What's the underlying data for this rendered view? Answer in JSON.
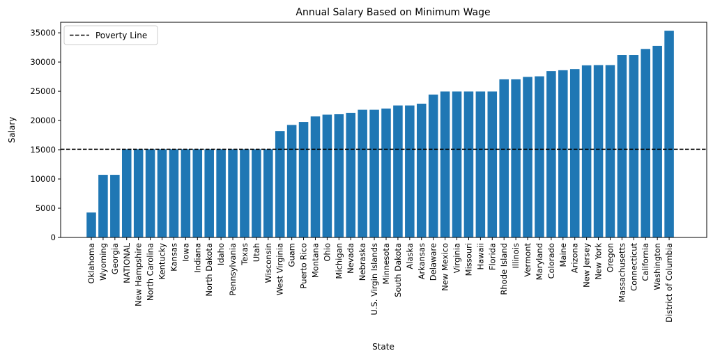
{
  "chart_data": {
    "type": "bar",
    "title": "Annual Salary Based on Minimum Wage",
    "xlabel": "State",
    "ylabel": "Salary",
    "ylim": [
      0,
      36800
    ],
    "yticks": [
      0,
      5000,
      10000,
      15000,
      20000,
      25000,
      30000,
      35000
    ],
    "bar_color": "#1f77b4",
    "grid": false,
    "legend_position": "top-left",
    "reference_line": {
      "name": "Poverty Line",
      "value": 15080,
      "color": "#000000",
      "style": "dashed"
    },
    "categories": [
      "Oklahoma",
      "Wyoming",
      "Georgia",
      "NATIONAL",
      "New Hampshire",
      "North Carolina",
      "Kentucky",
      "Kansas",
      "Iowa",
      "Indiana",
      "North Dakota",
      "Idaho",
      "Pennsylvania",
      "Texas",
      "Utah",
      "Wisconsin",
      "West Virginia",
      "Guam",
      "Puerto Rico",
      "Montana",
      "Ohio",
      "Michigan",
      "Nevada",
      "Nebraska",
      "U.S. Virgin Islands",
      "Minnesota",
      "South Dakota",
      "Alaska",
      "Arkansas",
      "Delaware",
      "New Mexico",
      "Virginia",
      "Missouri",
      "Hawaii",
      "Florida",
      "Rhode Island",
      "Illinois",
      "Vermont",
      "Maryland",
      "Colorado",
      "Maine",
      "Arizona",
      "New Jersey",
      "New York",
      "Oregon",
      "Massachusetts",
      "Connecticut",
      "California",
      "Washington",
      "District of Columbia"
    ],
    "values": [
      4264,
      10712,
      10712,
      15080,
      15080,
      15080,
      15080,
      15080,
      15080,
      15080,
      15080,
      15080,
      15080,
      15080,
      15080,
      15080,
      18200,
      19240,
      19760,
      20696,
      21008,
      21070,
      21320,
      21840,
      21840,
      22050,
      22568,
      22568,
      22880,
      24440,
      24960,
      24960,
      24960,
      24960,
      24960,
      27040,
      27040,
      27456,
      27560,
      28450,
      28600,
      28800,
      29440,
      29480,
      29480,
      31200,
      31200,
      32240,
      32760,
      35360
    ]
  }
}
